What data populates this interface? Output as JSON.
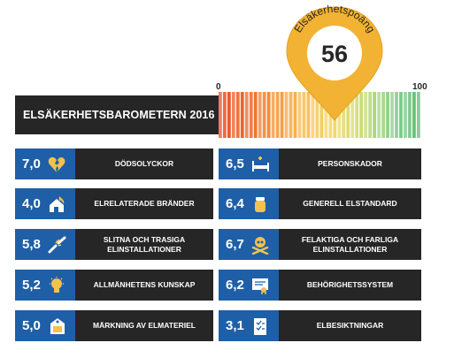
{
  "header": {
    "title": "ELSÄKERHETSBAROMETERN 2016",
    "pin_caption": "Elsäkerhetspoäng",
    "pin_value": "56"
  },
  "chart_data": {
    "type": "bar",
    "title": "ELSÄKERHETSBAROMETERN 2016",
    "score": 56,
    "scale_min": 0,
    "scale_max": 100,
    "scale_labels": [
      "0",
      "100"
    ],
    "categories": [
      "DÖDSOLYCKOR",
      "ELRELATERADE BRÄNDER",
      "SLITNA OCH TRASIGA ELINSTALLATIONER",
      "ALLMÄNHETENS KUNSKAP",
      "MÄRKNING AV ELMATERIEL",
      "PERSONSKADOR",
      "GENERELL ELSTANDARD",
      "FELAKTIGA OCH FARLIGA ELINSTALLATIONER",
      "BEHÖRIGHETSSYSTEM",
      "ELBESIKTNINGAR"
    ],
    "values": [
      7.0,
      4.0,
      5.8,
      5.2,
      5.0,
      6.5,
      6.4,
      6.7,
      6.2,
      3.1
    ]
  },
  "cards": [
    {
      "score": "7,0",
      "label": "DÖDSOLYCKOR",
      "icon": "broken-heart-icon"
    },
    {
      "score": "4,0",
      "label": "ELRELATERADE BRÄNDER",
      "icon": "burning-house-icon"
    },
    {
      "score": "5,8",
      "label": "SLITNA OCH TRASIGA\nELINSTALLATIONER",
      "icon": "broken-cable-icon"
    },
    {
      "score": "5,2",
      "label": "ALLMÄNHETENS KUNSKAP",
      "icon": "lightbulb-icon"
    },
    {
      "score": "5,0",
      "label": "MÄRKNING AV ELMATERIEL",
      "icon": "label-tag-icon"
    },
    {
      "score": "6,5",
      "label": "PERSONSKADOR",
      "icon": "hospital-bed-icon"
    },
    {
      "score": "6,4",
      "label": "GENERELL ELSTANDARD",
      "icon": "fuse-icon"
    },
    {
      "score": "6,7",
      "label": "FELAKTIGA OCH FARLIGA\nELINSTALLATIONER",
      "icon": "skull-crossbones-icon"
    },
    {
      "score": "6,2",
      "label": "BEHÖRIGHETSSYSTEM",
      "icon": "certificate-icon"
    },
    {
      "score": "3,1",
      "label": "ELBESIKTNINGAR",
      "icon": "checklist-icon"
    }
  ],
  "colors": {
    "dark": "#262626",
    "blue": "#1f5fa7",
    "pin": "#f2b233",
    "icon": "#f2c14e"
  }
}
